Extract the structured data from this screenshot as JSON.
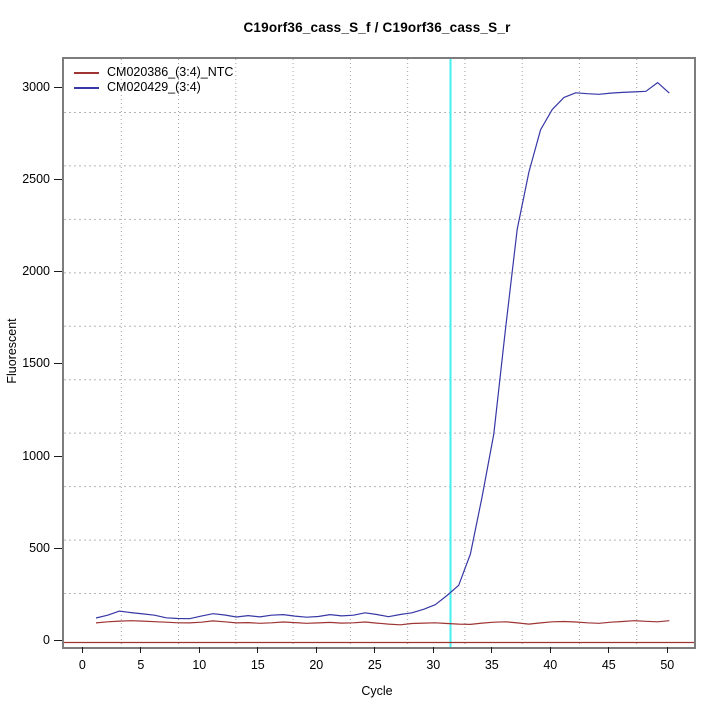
{
  "window": {
    "background": "#ffffff"
  },
  "chart_data": {
    "type": "line",
    "title": "C19orf36_cass_S_f / C19orf36_cass_S_r",
    "xlabel": "Cycle",
    "ylabel": "Fluorescent",
    "xlim": [
      0,
      50
    ],
    "ylim": [
      0,
      3000
    ],
    "x_ticks": [
      0,
      5,
      10,
      15,
      20,
      25,
      30,
      35,
      40,
      45,
      50
    ],
    "y_ticks": [
      0,
      500,
      1000,
      1500,
      2000,
      2500,
      3000
    ],
    "grid": {
      "on": true,
      "nx": 11,
      "ny": 11,
      "style": "dotted",
      "color": "#b5b5b5"
    },
    "legend_position": "top-left",
    "threshold_line": {
      "x": 31.3,
      "color": "#45efef",
      "orientation": "vertical"
    },
    "baseline": {
      "y": 0,
      "color": "#9e3434",
      "orientation": "horizontal"
    },
    "cycles": [
      1,
      2,
      3,
      4,
      5,
      6,
      7,
      8,
      9,
      10,
      11,
      12,
      13,
      14,
      15,
      16,
      17,
      18,
      19,
      20,
      21,
      22,
      23,
      24,
      25,
      26,
      27,
      28,
      29,
      30,
      31,
      32,
      33,
      34,
      35,
      36,
      37,
      38,
      39,
      40,
      41,
      42,
      43,
      44,
      45,
      46,
      47,
      48,
      49,
      50
    ],
    "series": [
      {
        "name": "CM020386_(3:4)_NTC",
        "color": "#9e3434",
        "values": [
          106,
          112,
          116,
          118,
          116,
          113,
          110,
          107,
          106,
          110,
          117,
          112,
          106,
          108,
          104,
          107,
          111,
          108,
          104,
          106,
          109,
          105,
          107,
          111,
          105,
          100,
          96,
          103,
          105,
          107,
          103,
          100,
          98,
          105,
          110,
          112,
          106,
          100,
          106,
          112,
          114,
          111,
          107,
          104,
          110,
          114,
          118,
          115,
          112,
          118
        ]
      },
      {
        "name": "CM020429_(3:4)",
        "color": "#3737a6",
        "values": [
          133,
          148,
          170,
          162,
          155,
          148,
          134,
          130,
          129,
          143,
          156,
          149,
          138,
          146,
          139,
          148,
          151,
          143,
          137,
          141,
          151,
          144,
          148,
          161,
          152,
          140,
          152,
          161,
          180,
          205,
          255,
          310,
          480,
          790,
          1130,
          1700,
          2240,
          2550,
          2780,
          2890,
          2955,
          2980,
          2975,
          2972,
          2978,
          2982,
          2985,
          2988,
          3035,
          2978
        ]
      }
    ]
  }
}
